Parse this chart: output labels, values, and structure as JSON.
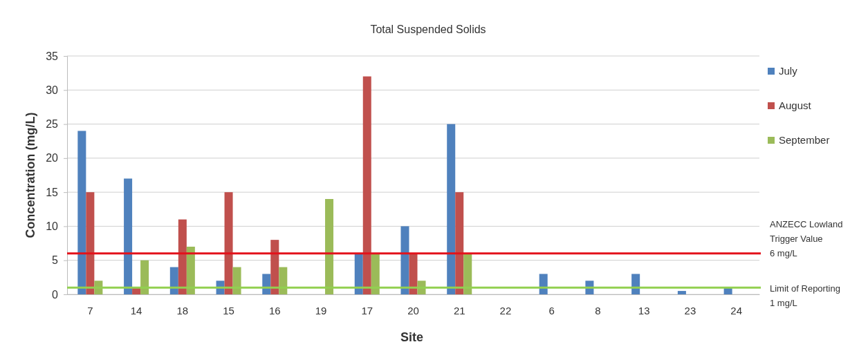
{
  "chart_data": {
    "type": "bar",
    "title": "Total Suspended Solids",
    "xlabel": "Site",
    "ylabel": "Concentration (mg/L)",
    "categories": [
      "7",
      "14",
      "18",
      "15",
      "16",
      "19",
      "17",
      "20",
      "21",
      "22",
      "6",
      "8",
      "13",
      "23",
      "24"
    ],
    "series": [
      {
        "name": "July",
        "color": "#4f81bd",
        "values": [
          24,
          17,
          4,
          2,
          3,
          null,
          6,
          10,
          25,
          null,
          3,
          2,
          3,
          0.5,
          1
        ]
      },
      {
        "name": "August",
        "color": "#c0504d",
        "values": [
          15,
          1,
          11,
          15,
          8,
          null,
          32,
          6,
          15,
          null,
          null,
          null,
          null,
          null,
          null
        ]
      },
      {
        "name": "September",
        "color": "#9bbb59",
        "values": [
          2,
          5,
          7,
          4,
          4,
          14,
          6,
          2,
          6,
          null,
          null,
          null,
          null,
          null,
          null
        ]
      }
    ],
    "ylim": [
      0,
      35
    ],
    "yticks": [
      0,
      5,
      10,
      15,
      20,
      25,
      30,
      35
    ],
    "grid": "y",
    "legend": "top right",
    "ref_lines": [
      {
        "axis": "y",
        "value": 6,
        "label": "ANZECC Lowland\nTrigger Value\n6 mg/L",
        "color": "#e3121b"
      },
      {
        "axis": "y",
        "value": 1,
        "label": "Limit of Reporting\n1 mg/L",
        "color": "#92d050"
      }
    ]
  }
}
